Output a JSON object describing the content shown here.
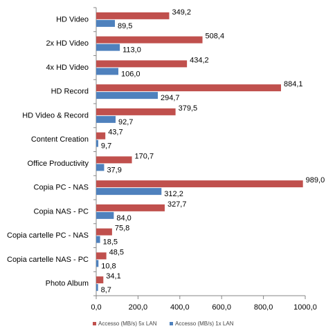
{
  "chart_data": {
    "type": "bar",
    "orientation": "horizontal",
    "categories": [
      "HD Video",
      "2x HD Video",
      "4x HD Video",
      "HD Record",
      "HD Video & Record",
      "Content Creation",
      "Office Productivity",
      "Copia PC - NAS",
      "Copia NAS - PC",
      "Copia cartelle PC - NAS",
      "Copia cartelle NAS - PC",
      "Photo Album"
    ],
    "series": [
      {
        "name": "Accesso (MB/s) 5x LAN",
        "color": "#c0504d",
        "values": [
          349.2,
          508.4,
          434.2,
          884.1,
          379.5,
          43.7,
          170.7,
          989.0,
          327.7,
          75.8,
          48.5,
          34.1
        ],
        "value_labels": [
          "349,2",
          "508,4",
          "434,2",
          "884,1",
          "379,5",
          "43,7",
          "170,7",
          "989,0",
          "327,7",
          "75,8",
          "48,5",
          "34,1"
        ]
      },
      {
        "name": "Accesso (MB/s) 1x LAN",
        "color": "#4f81bd",
        "values": [
          89.5,
          113.0,
          106.0,
          294.7,
          92.7,
          9.7,
          37.9,
          312.2,
          84.0,
          18.5,
          10.8,
          8.7
        ],
        "value_labels": [
          "89,5",
          "113,0",
          "106,0",
          "294,7",
          "92,7",
          "9,7",
          "37,9",
          "312,2",
          "84,0",
          "18,5",
          "10,8",
          "8,7"
        ]
      }
    ],
    "xlim": [
      0,
      1000
    ],
    "xticks": [
      {
        "value": 0,
        "label": "0,0"
      },
      {
        "value": 200,
        "label": "200,0"
      },
      {
        "value": 400,
        "label": "400,0"
      },
      {
        "value": 600,
        "label": "600,0"
      },
      {
        "value": 800,
        "label": "800,0"
      },
      {
        "value": 1000,
        "label": "1000,0"
      }
    ],
    "grid": false,
    "legend": "bottom"
  }
}
